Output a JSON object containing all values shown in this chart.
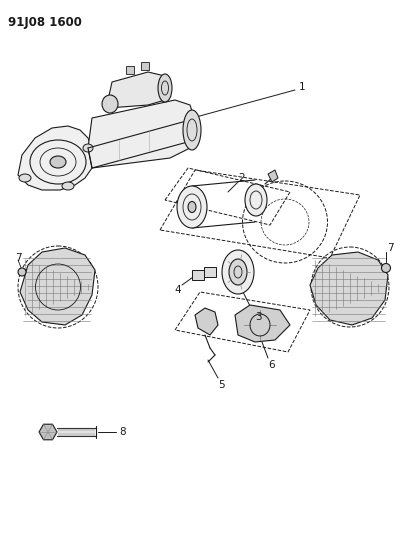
{
  "title": "91J08 1600",
  "bg_color": "#ffffff",
  "line_color": "#1a1a1a",
  "gray_fill": "#e8e8e8",
  "dark_gray": "#aaaaaa",
  "hatch_color": "#999999",
  "label_fontsize": 7.5,
  "title_fontsize": 8.5,
  "figsize": [
    4.12,
    5.33
  ],
  "dpi": 100
}
